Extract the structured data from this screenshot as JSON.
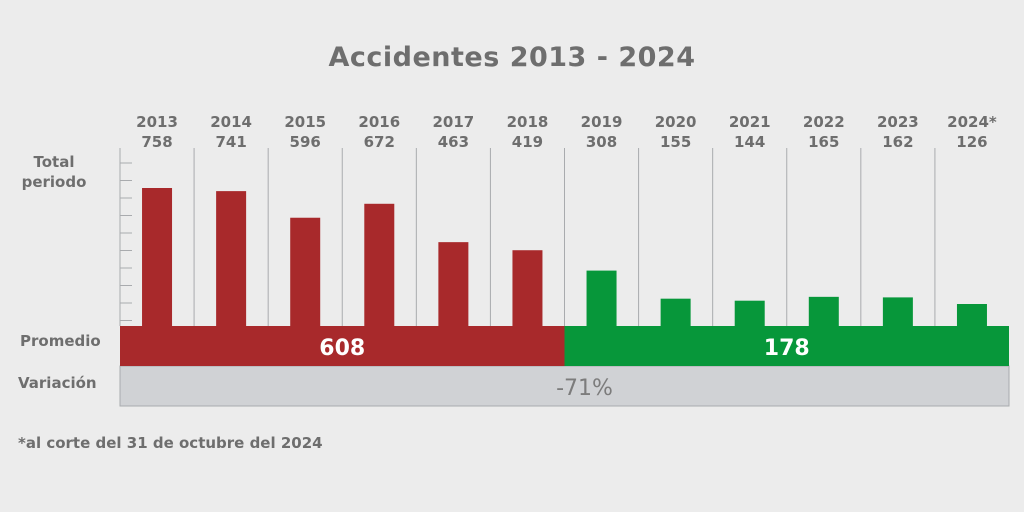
{
  "title": "Accidentes 2013 - 2024",
  "row_labels": {
    "total": [
      "Total",
      "periodo"
    ],
    "promedio": "Promedio",
    "variacion": "Variación"
  },
  "footnote": "*al corte del 31 de octubre del 2024",
  "colors": {
    "before": "#a8292b",
    "after": "#07973a",
    "variation_band": "#d0d2d5",
    "text": "#6e6e6e",
    "grid": "#a9abae"
  },
  "chart_data": {
    "type": "bar",
    "title": "Accidentes 2013 - 2024",
    "categories": [
      "2013",
      "2014",
      "2015",
      "2016",
      "2017",
      "2018",
      "2019",
      "2020",
      "2021",
      "2022",
      "2023",
      "2024*"
    ],
    "values": [
      758,
      741,
      596,
      672,
      463,
      419,
      308,
      155,
      144,
      165,
      162,
      126
    ],
    "value_labels": [
      "758",
      "741",
      "596",
      "672",
      "463",
      "419",
      "308",
      "155",
      "144",
      "165",
      "162",
      "126"
    ],
    "period_split_after": "2018",
    "averages": [
      {
        "label": "608",
        "value": 608,
        "from": "2013",
        "to": "2018"
      },
      {
        "label": "178",
        "value": 178,
        "from": "2019",
        "to": "2024*"
      }
    ],
    "variation": {
      "label": "-71%",
      "value": -71
    },
    "ylim": [
      0,
      800
    ],
    "grid": false
  }
}
